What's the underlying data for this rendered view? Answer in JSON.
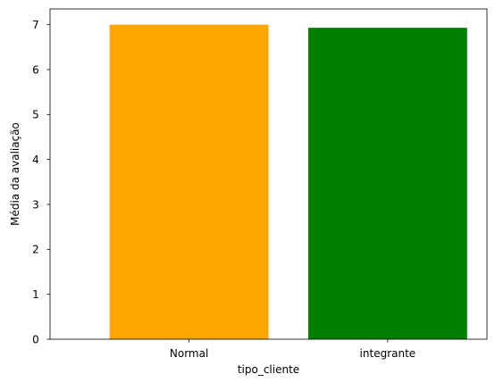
{
  "chart_data": {
    "type": "bar",
    "categories": [
      "Normal",
      "integrante"
    ],
    "values": [
      7.0,
      6.93
    ],
    "colors": [
      "#ffa500",
      "#008000"
    ],
    "title": "",
    "xlabel": "tipo_cliente",
    "ylabel": "Média da avaliação",
    "ylim": [
      0,
      7.35
    ],
    "yticks": [
      0,
      1,
      2,
      3,
      4,
      5,
      6,
      7
    ],
    "grid": false,
    "legend": "none"
  }
}
